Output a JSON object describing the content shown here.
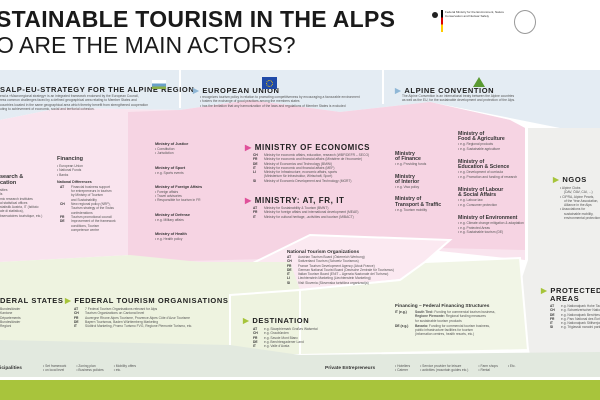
{
  "title": {
    "line1": "STAINABLE TOURISM IN THE ALPS",
    "line2": "O ARE THE MAIN ACTORS?"
  },
  "ministry_logo": "Federal Ministry for the Environment, Nature Conservation and Nuclear Safety",
  "colors": {
    "pink": "#f6d9e6",
    "blue": "#e4ecf3",
    "green": "#eef3e0",
    "gray": "#eeeeec",
    "accent_green": "#a8c43c",
    "accent_pink": "#e0509a"
  },
  "strategy": {
    "title": "SALP-EU-STRATEGY FOR THE ALPINE REGION",
    "text": [
      "eral a »Macroregional strategy« is an integrated framework endorsed by the European Council,",
      "ress common challenges faced by a defined geographical area relating to Member States and",
      "countries located in the same geographical area which thereby benefit from strengthened cooperation",
      "uting to achievement of economic, social and territorial cohesion."
    ]
  },
  "eu": {
    "title": "EUROPEAN UNION",
    "items": [
      "recognizes tourism policy in relation to promoting competitiveness by encouraging a favourable environment",
      "fosters the exchange of good practices among the members states",
      "has the limitation that any harmonization of the laws and regulations of Member States is excluded"
    ]
  },
  "alpine_convention": {
    "title": "ALPINE CONVENTION",
    "text": [
      "The Alpine Convention is an international treaty between the Alpine countries",
      "as well as the EU, for the sustainable development and protection of the Alps."
    ]
  },
  "research": {
    "title": [
      "search &",
      "cation"
    ],
    "items": [
      "sities",
      "ls",
      "mic research institutes",
      "al statistical offices",
      "statistik Austria, IT (Istituto",
      "ale di statistica),",
      "bservatoires touristique, etc.)"
    ]
  },
  "financing": {
    "title": "Financing",
    "items": [
      "European Union",
      "National Funds",
      "Banks"
    ],
    "nd_title": "National Differences",
    "nd": [
      {
        "c": "AT",
        "t": [
          "Financial business support",
          "for entrepreneurs in tourism",
          "by Ministry of Tourism",
          "and Sustainability"
        ]
      },
      {
        "c": "CH",
        "t": [
          "New regional policy (NRP),",
          "Tourism strategy of the Swiss",
          "confederations"
        ]
      },
      {
        "c": "FR",
        "t": [
          "Tourism promotional council"
        ]
      },
      {
        "c": "DE",
        "t": [
          "Improvement of the framework",
          "conditions, Tourism",
          "competence centre"
        ]
      }
    ]
  },
  "small_ministries": [
    {
      "title": "Ministry of Justice",
      "items": [
        "Constitution",
        "Jurisdiction"
      ]
    },
    {
      "title": "Ministry of Sport",
      "items": [
        "e.g. Sports events"
      ]
    },
    {
      "title": "Ministry of Foreign Affairs",
      "items": [
        "Foreign affairs",
        "Travel advisories",
        "Responsible for tourism in FR"
      ]
    },
    {
      "title": "Ministry of Defense",
      "items": [
        "e.g. Military affairs"
      ]
    },
    {
      "title": "Ministry of Health",
      "items": [
        "e.g. Health policy"
      ]
    }
  ],
  "economics": {
    "title": "MINISTRY OF ECONOMICS",
    "rows": [
      {
        "c": "CH",
        "t": "Ministry for economic affairs, education, research (WBF/DEFR – SECO)"
      },
      {
        "c": "FR",
        "t": "Ministry for economic and financial affairs (Ministère de l'économie)"
      },
      {
        "c": "DE",
        "t": "Ministry of Economics and Technology (BMWi)"
      },
      {
        "c": "IT",
        "t": "Ministry for economic and financial affairs (MEF)"
      },
      {
        "c": "LI",
        "t": "Ministry for Infrastructure, economic affairs, sports"
      },
      {
        "c": "",
        "t": "(Ministerium für Infrastruktur, Wirtschaft, Sport)"
      },
      {
        "c": "SI",
        "t": "Ministry of Economic Development and Technology (MGRT)"
      }
    ]
  },
  "atfrit": {
    "title": "MINISTRY: AT, FR, IT",
    "rows": [
      {
        "c": "AT",
        "t": "Ministry for Sustainability & Tourism (BMNT)"
      },
      {
        "c": "FR",
        "t": "Ministry for foreign affairs and international development (MEAE)"
      },
      {
        "c": "IT",
        "t": "Ministry for cultural heritage, -activities and tourism (MIBACT)"
      }
    ]
  },
  "mid_ministries": [
    {
      "title": [
        "Ministry",
        "of Finance"
      ],
      "items": [
        "e.g. Providing funds"
      ]
    },
    {
      "title": [
        "Ministry",
        "of Interior"
      ],
      "items": [
        "e.g. Visa policy"
      ]
    },
    {
      "title": [
        "Ministry of",
        "Transport & Traffic"
      ],
      "items": [
        "e.g. Tourism mobility"
      ]
    }
  ],
  "right_ministries": [
    {
      "title": [
        "Ministry of",
        "Food & Agriculture"
      ],
      "items": [
        "e.g. Regional products",
        "e.g. Sustainable agriculture"
      ]
    },
    {
      "title": [
        "Ministry of",
        "Education & Science"
      ],
      "items": [
        "e.g. Development of curricula",
        "e.g. Promotion and funding of research"
      ]
    },
    {
      "title": [
        "Ministry of Labour",
        "& Social Affairs"
      ],
      "items": [
        "e.g. Labour law",
        "e.g. Consumer protection"
      ]
    },
    {
      "title": [
        "Ministry of Environment"
      ],
      "items": [
        "e.g. Climate change mitigation & adaptation",
        "e.g. Protected Areas",
        "e.g. Sustainable tourism (DE)"
      ]
    }
  ],
  "nto": {
    "title": "National Tourism Organizations",
    "rows": [
      {
        "c": "AT",
        "t": "Austrian Tourism Board (Österreich Werbung)"
      },
      {
        "c": "CH",
        "t": "Switzerland Tourism (Schweiz Tourismus)"
      },
      {
        "c": "FR",
        "t": "France Tourism Development Agency (Atout France)"
      },
      {
        "c": "DE",
        "t": "German National Tourist Board (Deutsche Zentrale für Tourismus)"
      },
      {
        "c": "IT",
        "t": "Italian Tourism Board (ENIT – Agenzia Nazionale del Turismo)"
      },
      {
        "c": "LI",
        "t": "Liechtenstein Marketing (Liechtenstein Marketing)"
      },
      {
        "c": "SI",
        "t": "Visit Slovenia (Slovenska turistična organizacija)"
      }
    ]
  },
  "ngos": {
    "title": "NGOS",
    "items": [
      [
        "Alpine Clubs",
        "(DAV, ÖAV, CAI, ...)"
      ],
      [
        "CIPRA, Alpine Pearls,",
        "of the Year Association,",
        "Alliance in the Alps"
      ],
      [
        "Associations for",
        "sustainable mobility,",
        "environmental protection"
      ]
    ]
  },
  "federal_states": {
    "title": "DERAL STATES",
    "items": [
      "Bundesländer",
      "Kantone",
      "Départements",
      "Bundesländer",
      "Regioni"
    ]
  },
  "fto": {
    "title": "FEDERAL TOURISM ORGANISATIONS",
    "rows": [
      {
        "c": "AT",
        "t": "7 Federal Tourism Organisations relevant for Alps"
      },
      {
        "c": "CH",
        "t": "Tourism Organizations on Cantonal level"
      },
      {
        "c": "FR",
        "t": "Auvergne Rhone Alpes Tourisme, Provence Alpes Côte d'Azur Tourisme"
      },
      {
        "c": "DE",
        "t": "Bayern Tourismus, Baden Württemberg Marketing"
      },
      {
        "c": "IT",
        "t": "Südtirol Marketing, Promo Turismo FVG, Regione Piemonte Turismo, etc."
      }
    ]
  },
  "destination": {
    "title": "DESTINATION",
    "rows": [
      {
        "c": "AT",
        "t": "e.g. Slowphiemark Großes Walsertal"
      },
      {
        "c": "CH",
        "t": "e.g. Graubünden"
      },
      {
        "c": "FR",
        "t": "e.g. Savoie Mont Blanc"
      },
      {
        "c": "DE",
        "t": "e.g. Berchtesgadener Land"
      },
      {
        "c": "IT",
        "t": "e.g. Valle d'Aosta"
      }
    ]
  },
  "fed_financing": {
    "title": "Financing – Federal Financing Structures",
    "rows": [
      {
        "c": "IT (e.g.)",
        "t": [
          [
            "South Tirol:",
            " Funding for commercial tourism business,"
          ],
          [
            "Regione Piemonte:",
            " Regional funding measures"
          ],
          [
            "",
            " for sustainable tourism products"
          ]
        ]
      },
      {
        "c": "DE (e.g.)",
        "t": [
          [
            "Bavaria:",
            " Funding for commercial tourism business,"
          ],
          [
            "",
            " public infrastructure facilities for tourism"
          ],
          [
            "",
            " (information centres, health resorts, etc.)"
          ]
        ]
      }
    ]
  },
  "protected": {
    "title": [
      "PROTECTED",
      "AREAS"
    ],
    "rows": [
      {
        "c": "AT",
        "t": "e.g. Nationalpark Hohe Tauern"
      },
      {
        "c": "CH",
        "t": "e.g. Schweizerischer Nationalpark"
      },
      {
        "c": "DE",
        "t": "e.g. Nationalpark Berchtesgaden"
      },
      {
        "c": "FR",
        "t": "e.g. Parc National des Écrins"
      },
      {
        "c": "IT",
        "t": "e.g. Nationalpark Stilfserjoch"
      },
      {
        "c": "SI",
        "t": "e.g. Triglavski narodni park"
      }
    ]
  },
  "municipalities": {
    "title": "icipalities",
    "cols": [
      [
        "Set framework",
        "on local level"
      ],
      [
        "Zoning plan",
        "Business policies"
      ],
      [
        "Mobility offers",
        "etc."
      ]
    ]
  },
  "private": {
    "title": "Private Entrepreneurs",
    "cols": [
      [
        "Hoteliers",
        "Caterer"
      ],
      [
        "Service provider for leisure",
        "activities (mountain guides etc.)"
      ],
      [
        "Farm shops",
        "Rental"
      ],
      [
        "Etc."
      ]
    ]
  }
}
